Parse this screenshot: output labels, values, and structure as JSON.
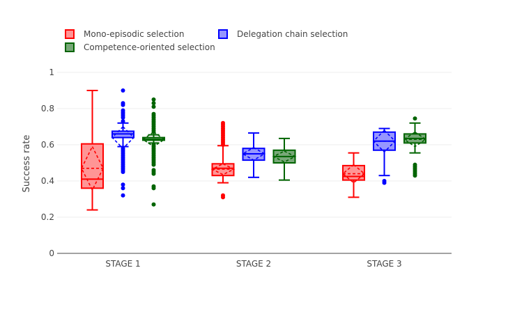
{
  "chart_data": {
    "type": "box",
    "title": "",
    "xlabel": "",
    "ylabel": "Success rate",
    "ylim": [
      0,
      1
    ],
    "yticks": [
      "0",
      "0.2",
      "0.4",
      "0.6",
      "0.8",
      "1"
    ],
    "categories": [
      "STAGE 1",
      "STAGE 2",
      "STAGE 3"
    ],
    "grid": true,
    "legend_position": "top-left",
    "series": [
      {
        "name": "Mono-episodic selection",
        "color": "#ff0000",
        "fill": "#ff9595",
        "boxes": [
          {
            "min": 0.24,
            "q1": 0.36,
            "median": 0.41,
            "q3": 0.605,
            "max": 0.9,
            "mean": 0.47,
            "sd": 0.12,
            "outliers": []
          },
          {
            "min": 0.39,
            "q1": 0.43,
            "median": 0.47,
            "q3": 0.495,
            "max": 0.595,
            "mean": 0.465,
            "sd": 0.03,
            "outliers": [
              0.6,
              0.61,
              0.62,
              0.63,
              0.64,
              0.65,
              0.66,
              0.67,
              0.68,
              0.69,
              0.7,
              0.71,
              0.72,
              0.31,
              0.32
            ]
          },
          {
            "min": 0.31,
            "q1": 0.405,
            "median": 0.425,
            "q3": 0.485,
            "max": 0.555,
            "mean": 0.44,
            "sd": 0.05,
            "outliers": []
          }
        ]
      },
      {
        "name": "Delegation chain selection",
        "color": "#0000ff",
        "fill": "#9696ff",
        "boxes": [
          {
            "min": 0.59,
            "q1": 0.64,
            "median": 0.66,
            "q3": 0.675,
            "max": 0.72,
            "mean": 0.64,
            "sd": 0.06,
            "outliers": [
              0.9,
              0.83,
              0.82,
              0.79,
              0.78,
              0.77,
              0.76,
              0.75,
              0.73,
              0.58,
              0.57,
              0.56,
              0.55,
              0.54,
              0.53,
              0.52,
              0.51,
              0.5,
              0.49,
              0.48,
              0.47,
              0.46,
              0.45,
              0.38,
              0.36,
              0.32
            ]
          },
          {
            "min": 0.42,
            "q1": 0.515,
            "median": 0.55,
            "q3": 0.58,
            "max": 0.665,
            "mean": 0.55,
            "sd": 0.035,
            "outliers": []
          },
          {
            "min": 0.43,
            "q1": 0.57,
            "median": 0.62,
            "q3": 0.67,
            "max": 0.69,
            "mean": 0.62,
            "sd": 0.06,
            "outliers": [
              0.4,
              0.39
            ]
          }
        ]
      },
      {
        "name": "Competence-oriented selection",
        "color": "#006400",
        "fill": "#78a878",
        "boxes": [
          {
            "min": 0.61,
            "q1": 0.625,
            "median": 0.63,
            "q3": 0.64,
            "max": 0.655,
            "mean": 0.63,
            "sd": 0.04,
            "outliers": [
              0.85,
              0.83,
              0.81,
              0.77,
              0.76,
              0.75,
              0.74,
              0.73,
              0.72,
              0.71,
              0.7,
              0.69,
              0.68,
              0.67,
              0.6,
              0.59,
              0.58,
              0.57,
              0.56,
              0.55,
              0.54,
              0.53,
              0.52,
              0.51,
              0.5,
              0.49,
              0.46,
              0.45,
              0.44,
              0.37,
              0.36,
              0.27
            ]
          },
          {
            "min": 0.405,
            "q1": 0.5,
            "median": 0.535,
            "q3": 0.57,
            "max": 0.635,
            "mean": 0.535,
            "sd": 0.03,
            "outliers": []
          },
          {
            "min": 0.555,
            "q1": 0.61,
            "median": 0.635,
            "q3": 0.66,
            "max": 0.72,
            "mean": 0.63,
            "sd": 0.04,
            "outliers": [
              0.745,
              0.49,
              0.48,
              0.47,
              0.46,
              0.45,
              0.44,
              0.43
            ]
          }
        ]
      }
    ]
  }
}
